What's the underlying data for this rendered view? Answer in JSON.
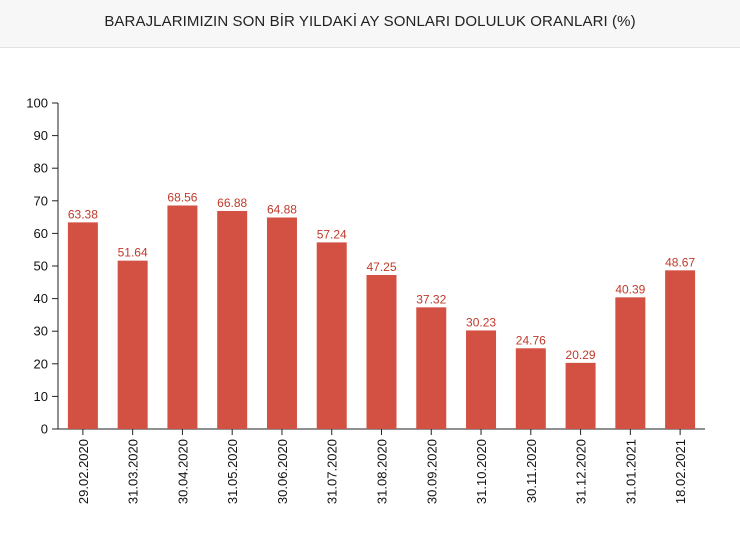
{
  "chart_data": {
    "type": "bar",
    "title": "BARAJLARIMIZIN SON BİR YILDAKİ AY SONLARI DOLULUK ORANLARI (%)",
    "categories": [
      "29.02.2020",
      "31.03.2020",
      "30.04.2020",
      "31.05.2020",
      "30.06.2020",
      "31.07.2020",
      "31.08.2020",
      "30.09.2020",
      "31.10.2020",
      "30.11.2020",
      "31.12.2020",
      "31.01.2021",
      "18.02.2021"
    ],
    "values": [
      63.38,
      51.64,
      68.56,
      66.88,
      64.88,
      57.24,
      47.25,
      37.32,
      30.23,
      24.76,
      20.29,
      40.39,
      48.67
    ],
    "value_labels": [
      "63.38",
      "51.64",
      "68.56",
      "66.88",
      "64.88",
      "57.24",
      "47.25",
      "37.32",
      "30.23",
      "24.76",
      "20.29",
      "40.39",
      "48.67"
    ],
    "y_ticks": [
      "0",
      "10",
      "20",
      "30",
      "40",
      "50",
      "60",
      "70",
      "80",
      "90",
      "100"
    ],
    "ylim": [
      0,
      100
    ],
    "xlabel": "",
    "ylabel": "",
    "grid": false,
    "bar_color": "#d35142",
    "label_color": "#c0392b"
  }
}
